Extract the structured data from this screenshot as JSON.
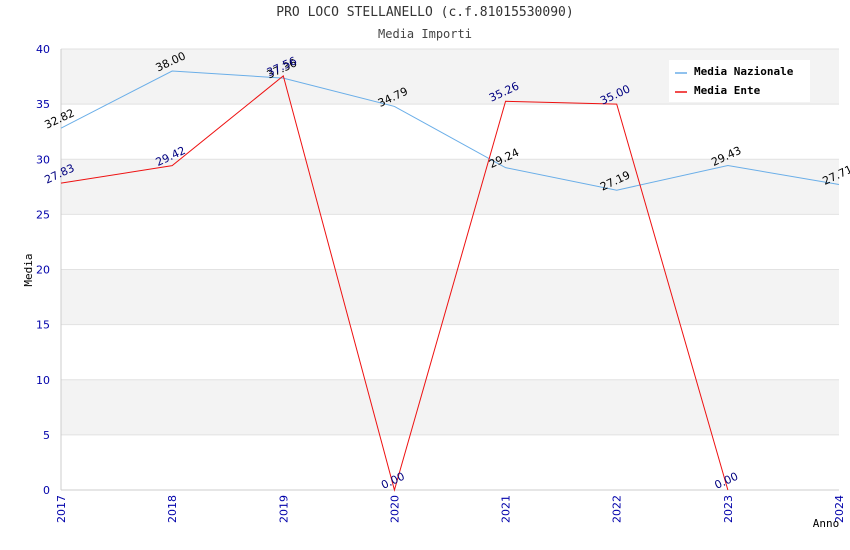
{
  "chart_data": {
    "type": "line",
    "title": "PRO LOCO STELLANELLO (c.f.81015530090)",
    "subtitle": "Media Importi",
    "xlabel": "Anno",
    "ylabel": "Media",
    "ylim": [
      0,
      40
    ],
    "yticks": [
      0,
      5,
      10,
      15,
      20,
      25,
      30,
      35,
      40
    ],
    "categories": [
      "2017",
      "2018",
      "2019",
      "2020",
      "2021",
      "2022",
      "2023",
      "2024"
    ],
    "legend_position": "top-right",
    "series": [
      {
        "name": "Media Nazionale",
        "color": "#6aaee8",
        "label_color": "#000000",
        "values": [
          32.82,
          38.0,
          37.36,
          34.79,
          29.24,
          27.19,
          29.43,
          27.71
        ],
        "labels": [
          "32.82",
          "38.00",
          "37.36",
          "34.79",
          "29.24",
          "27.19",
          "29.43",
          "27.71"
        ]
      },
      {
        "name": "Media Ente",
        "color": "#ee1111",
        "label_color": "#000080",
        "values": [
          27.83,
          29.42,
          37.56,
          0.0,
          35.26,
          35.0,
          0.0,
          null
        ],
        "labels": [
          "27.83",
          "29.42",
          "37.56",
          "0.00",
          "35.26",
          "35.00",
          "0.00",
          null
        ]
      }
    ]
  }
}
